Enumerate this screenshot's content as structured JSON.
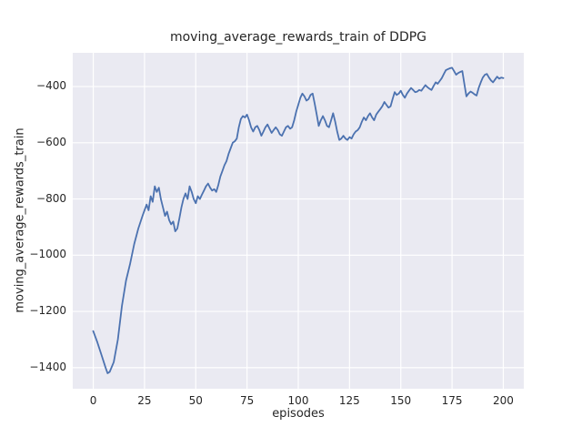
{
  "figure": {
    "background": "#ffffff"
  },
  "chart_data": {
    "type": "line",
    "title": "moving_average_rewards_train of DDPG",
    "xlabel": "episodes",
    "ylabel": "moving_average_rewards_train",
    "xlim": [
      -10,
      210
    ],
    "ylim": [
      -1475,
      -280
    ],
    "grid": true,
    "legend": "none",
    "xticks": [
      0,
      25,
      50,
      75,
      100,
      125,
      150,
      175,
      200
    ],
    "xtick_labels": [
      "0",
      "25",
      "50",
      "75",
      "100",
      "125",
      "150",
      "175",
      "200"
    ],
    "yticks": [
      -400,
      -600,
      -800,
      -1000,
      -1200,
      -1400
    ],
    "ytick_labels": [
      "−400",
      "−600",
      "−800",
      "−1000",
      "−1200",
      "−1400"
    ],
    "colors": {
      "line": "#4c72b0",
      "plot_background": "#eaeaf2",
      "grid": "#ffffff",
      "text": "#262626"
    },
    "series_name": "moving_average_rewards_train",
    "points": [
      [
        0,
        -1270
      ],
      [
        2,
        -1310
      ],
      [
        4,
        -1355
      ],
      [
        6,
        -1400
      ],
      [
        7,
        -1420
      ],
      [
        8,
        -1415
      ],
      [
        10,
        -1380
      ],
      [
        12,
        -1300
      ],
      [
        14,
        -1180
      ],
      [
        16,
        -1090
      ],
      [
        18,
        -1030
      ],
      [
        20,
        -960
      ],
      [
        22,
        -905
      ],
      [
        24,
        -860
      ],
      [
        26,
        -820
      ],
      [
        27,
        -840
      ],
      [
        28,
        -790
      ],
      [
        29,
        -810
      ],
      [
        30,
        -755
      ],
      [
        31,
        -775
      ],
      [
        32,
        -760
      ],
      [
        33,
        -800
      ],
      [
        34,
        -830
      ],
      [
        35,
        -860
      ],
      [
        36,
        -845
      ],
      [
        37,
        -875
      ],
      [
        38,
        -890
      ],
      [
        39,
        -880
      ],
      [
        40,
        -915
      ],
      [
        41,
        -905
      ],
      [
        42,
        -870
      ],
      [
        43,
        -830
      ],
      [
        44,
        -800
      ],
      [
        45,
        -780
      ],
      [
        46,
        -800
      ],
      [
        47,
        -755
      ],
      [
        48,
        -775
      ],
      [
        49,
        -800
      ],
      [
        50,
        -815
      ],
      [
        51,
        -790
      ],
      [
        52,
        -800
      ],
      [
        53,
        -785
      ],
      [
        54,
        -770
      ],
      [
        55,
        -755
      ],
      [
        56,
        -745
      ],
      [
        57,
        -760
      ],
      [
        58,
        -770
      ],
      [
        59,
        -765
      ],
      [
        60,
        -775
      ],
      [
        61,
        -750
      ],
      [
        62,
        -720
      ],
      [
        63,
        -700
      ],
      [
        64,
        -680
      ],
      [
        65,
        -665
      ],
      [
        66,
        -640
      ],
      [
        67,
        -620
      ],
      [
        68,
        -600
      ],
      [
        69,
        -595
      ],
      [
        70,
        -585
      ],
      [
        71,
        -545
      ],
      [
        72,
        -515
      ],
      [
        73,
        -505
      ],
      [
        74,
        -510
      ],
      [
        75,
        -500
      ],
      [
        76,
        -520
      ],
      [
        77,
        -545
      ],
      [
        78,
        -560
      ],
      [
        79,
        -545
      ],
      [
        80,
        -540
      ],
      [
        81,
        -555
      ],
      [
        82,
        -575
      ],
      [
        83,
        -560
      ],
      [
        84,
        -545
      ],
      [
        85,
        -535
      ],
      [
        86,
        -550
      ],
      [
        87,
        -565
      ],
      [
        88,
        -555
      ],
      [
        89,
        -545
      ],
      [
        90,
        -555
      ],
      [
        91,
        -570
      ],
      [
        92,
        -575
      ],
      [
        93,
        -560
      ],
      [
        94,
        -545
      ],
      [
        95,
        -540
      ],
      [
        96,
        -550
      ],
      [
        97,
        -545
      ],
      [
        98,
        -520
      ],
      [
        99,
        -490
      ],
      [
        100,
        -465
      ],
      [
        101,
        -440
      ],
      [
        102,
        -425
      ],
      [
        103,
        -435
      ],
      [
        104,
        -450
      ],
      [
        105,
        -445
      ],
      [
        106,
        -430
      ],
      [
        107,
        -425
      ],
      [
        108,
        -460
      ],
      [
        109,
        -500
      ],
      [
        110,
        -540
      ],
      [
        111,
        -520
      ],
      [
        112,
        -505
      ],
      [
        113,
        -520
      ],
      [
        114,
        -540
      ],
      [
        115,
        -545
      ],
      [
        116,
        -520
      ],
      [
        117,
        -495
      ],
      [
        118,
        -525
      ],
      [
        119,
        -560
      ],
      [
        120,
        -590
      ],
      [
        121,
        -585
      ],
      [
        122,
        -575
      ],
      [
        123,
        -585
      ],
      [
        124,
        -590
      ],
      [
        125,
        -580
      ],
      [
        126,
        -585
      ],
      [
        127,
        -570
      ],
      [
        128,
        -560
      ],
      [
        129,
        -555
      ],
      [
        130,
        -545
      ],
      [
        131,
        -525
      ],
      [
        132,
        -510
      ],
      [
        133,
        -520
      ],
      [
        134,
        -505
      ],
      [
        135,
        -495
      ],
      [
        136,
        -510
      ],
      [
        137,
        -520
      ],
      [
        138,
        -500
      ],
      [
        139,
        -490
      ],
      [
        140,
        -480
      ],
      [
        141,
        -470
      ],
      [
        142,
        -455
      ],
      [
        143,
        -465
      ],
      [
        144,
        -475
      ],
      [
        145,
        -470
      ],
      [
        146,
        -445
      ],
      [
        147,
        -420
      ],
      [
        148,
        -430
      ],
      [
        149,
        -425
      ],
      [
        150,
        -415
      ],
      [
        151,
        -430
      ],
      [
        152,
        -440
      ],
      [
        153,
        -425
      ],
      [
        154,
        -415
      ],
      [
        155,
        -405
      ],
      [
        156,
        -412
      ],
      [
        157,
        -420
      ],
      [
        158,
        -418
      ],
      [
        159,
        -412
      ],
      [
        160,
        -415
      ],
      [
        161,
        -405
      ],
      [
        162,
        -395
      ],
      [
        163,
        -402
      ],
      [
        164,
        -408
      ],
      [
        165,
        -412
      ],
      [
        166,
        -398
      ],
      [
        167,
        -385
      ],
      [
        168,
        -390
      ],
      [
        169,
        -380
      ],
      [
        170,
        -370
      ],
      [
        171,
        -355
      ],
      [
        172,
        -342
      ],
      [
        173,
        -338
      ],
      [
        174,
        -335
      ],
      [
        175,
        -333
      ],
      [
        176,
        -345
      ],
      [
        177,
        -358
      ],
      [
        178,
        -352
      ],
      [
        179,
        -348
      ],
      [
        180,
        -345
      ],
      [
        181,
        -390
      ],
      [
        182,
        -435
      ],
      [
        183,
        -425
      ],
      [
        184,
        -418
      ],
      [
        185,
        -422
      ],
      [
        186,
        -428
      ],
      [
        187,
        -432
      ],
      [
        188,
        -405
      ],
      [
        189,
        -385
      ],
      [
        190,
        -368
      ],
      [
        191,
        -358
      ],
      [
        192,
        -355
      ],
      [
        193,
        -368
      ],
      [
        194,
        -378
      ],
      [
        195,
        -385
      ],
      [
        196,
        -375
      ],
      [
        197,
        -365
      ],
      [
        198,
        -372
      ],
      [
        199,
        -368
      ],
      [
        200,
        -370
      ]
    ]
  }
}
